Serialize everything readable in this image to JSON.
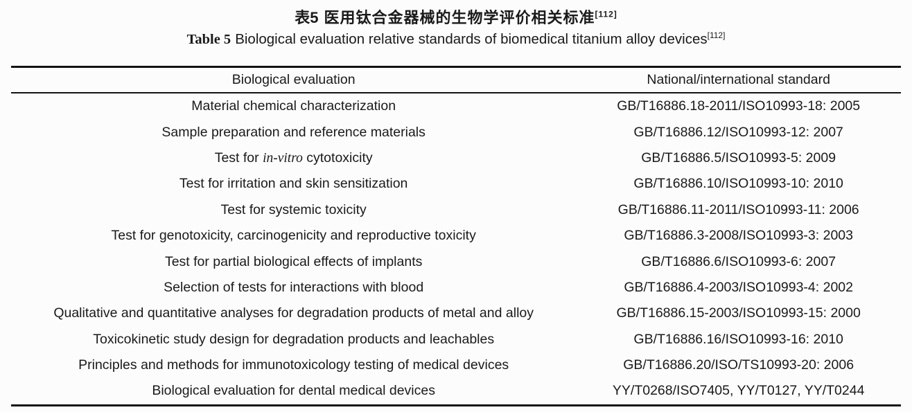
{
  "titles": {
    "chinese_label": "表5",
    "chinese_text": "医用钛合金器械的生物学评价相关标准",
    "english_label": "Table 5",
    "english_text": "Biological evaluation relative standards of biomedical titanium alloy devices",
    "reference": "[112]"
  },
  "table": {
    "headers": {
      "evaluation": "Biological evaluation",
      "standard": "National/international standard"
    },
    "rows": [
      {
        "evaluation": "Material chemical characterization",
        "standard": "GB/T16886.18-2011/ISO10993-18: 2005"
      },
      {
        "evaluation": "Sample preparation and reference materials",
        "standard": "GB/T16886.12/ISO10993-12: 2007"
      },
      {
        "evaluation": "Test for *in-vitro* cytotoxicity",
        "standard": "GB/T16886.5/ISO10993-5: 2009"
      },
      {
        "evaluation": "Test for irritation and skin sensitization",
        "standard": "GB/T16886.10/ISO10993-10: 2010"
      },
      {
        "evaluation": "Test for systemic toxicity",
        "standard": "GB/T16886.11-2011/ISO10993-11: 2006"
      },
      {
        "evaluation": "Test for genotoxicity, carcinogenicity and reproductive toxicity",
        "standard": "GB/T16886.3-2008/ISO10993-3: 2003"
      },
      {
        "evaluation": "Test for partial biological effects of implants",
        "standard": "GB/T16886.6/ISO10993-6: 2007"
      },
      {
        "evaluation": "Selection of tests for interactions with blood",
        "standard": "GB/T16886.4-2003/ISO10993-4: 2002"
      },
      {
        "evaluation": "Qualitative and quantitative analyses for degradation products of metal and alloy",
        "standard": "GB/T16886.15-2003/ISO10993-15: 2000"
      },
      {
        "evaluation": "Toxicokinetic study design for degradation products and leachables",
        "standard": "GB/T16886.16/ISO10993-16: 2010"
      },
      {
        "evaluation": "Principles and methods for immunotoxicology testing of medical devices",
        "standard": "GB/T16886.20/ISO/TS10993-20: 2006"
      },
      {
        "evaluation": "Biological evaluation for dental medical devices",
        "standard": "YY/T0268/ISO7405, YY/T0127, YY/T0244"
      }
    ]
  },
  "colors": {
    "text": "#1a1a1a",
    "rule": "#111111",
    "background": "#fcfcfc"
  }
}
